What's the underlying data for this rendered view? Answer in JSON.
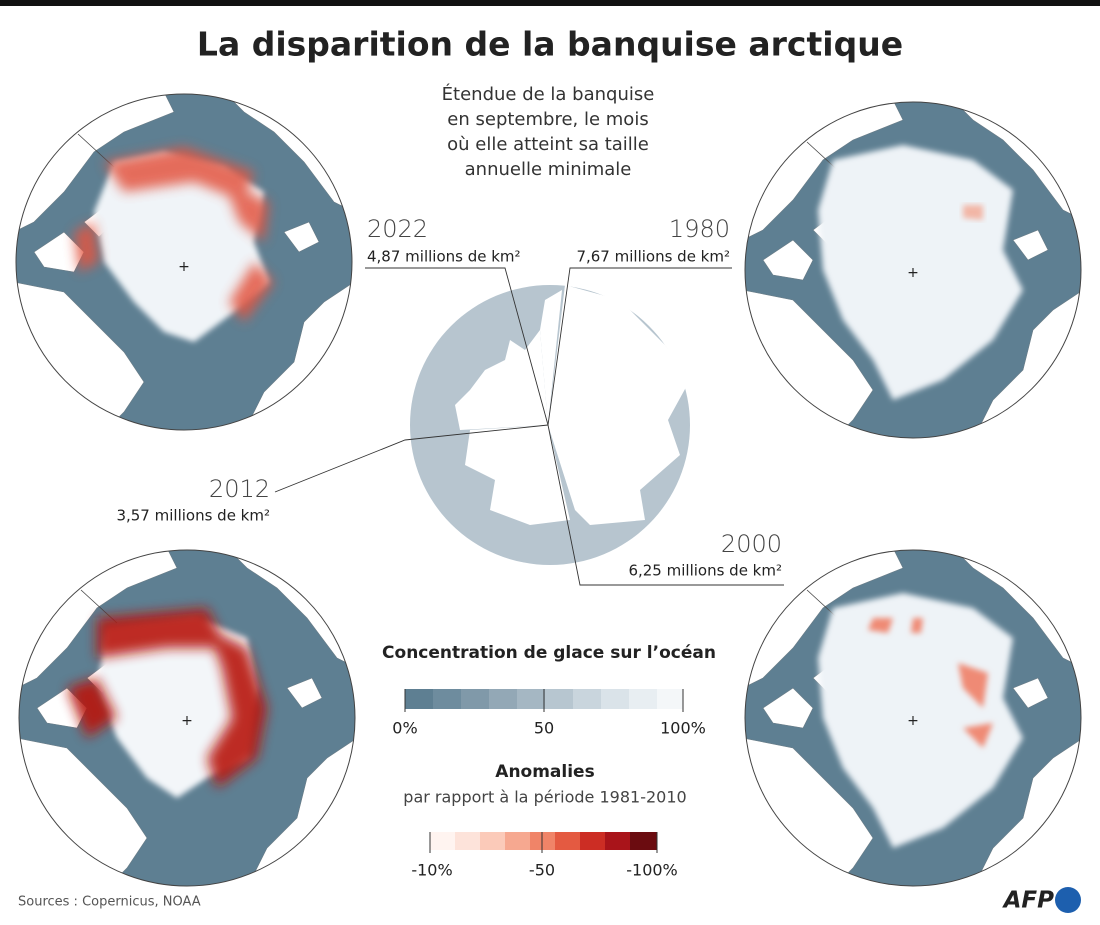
{
  "title": "La disparition de la banquise arctique",
  "subtitle": [
    "Étendue de la banquise",
    "en septembre, le mois",
    "où elle atteint sa taille",
    "annuelle minimale"
  ],
  "maps": [
    {
      "year": "2022",
      "extent": "4,87 millions de km²"
    },
    {
      "year": "1980",
      "extent": "7,67 millions de km²"
    },
    {
      "year": "2012",
      "extent": "3,57 millions de km²"
    },
    {
      "year": "2000",
      "extent": "6,25 millions de km²"
    }
  ],
  "legend": {
    "concentration": {
      "title": "Concentration de glace sur l’océan",
      "ticks": [
        "0%",
        "50",
        "100%"
      ]
    },
    "anomalies": {
      "title": "Anomalies",
      "subtitle": "par rapport à la période 1981-2010",
      "ticks": [
        "-10%",
        "-50",
        "-100%"
      ]
    }
  },
  "footer": {
    "source": "Sources : Copernicus, NOAA",
    "logo": "AFP"
  }
}
